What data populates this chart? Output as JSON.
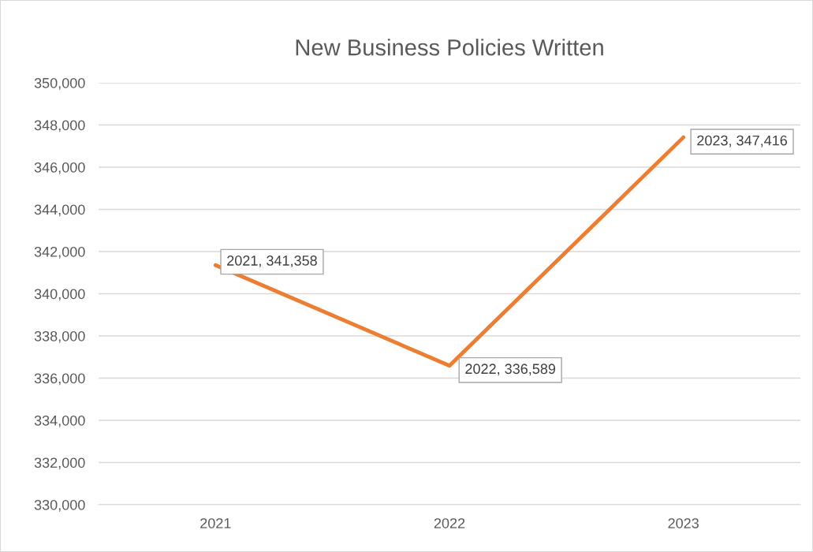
{
  "chart_data": {
    "type": "line",
    "title": "New Business Policies Written",
    "categories": [
      "2021",
      "2022",
      "2023"
    ],
    "series": [
      {
        "color": "#ed7d31",
        "values": [
          341358,
          336589,
          347416
        ],
        "value_labels": [
          "2021, 341,358",
          "2022, 336,589",
          "2023, 347,416"
        ]
      }
    ],
    "ylim": [
      330000,
      350000
    ],
    "yticks": [
      {
        "value": 330000,
        "label": "330,000"
      },
      {
        "value": 332000,
        "label": "332,000"
      },
      {
        "value": 334000,
        "label": "334,000"
      },
      {
        "value": 336000,
        "label": "336,000"
      },
      {
        "value": 338000,
        "label": "338,000"
      },
      {
        "value": 340000,
        "label": "340,000"
      },
      {
        "value": 342000,
        "label": "342,000"
      },
      {
        "value": 344000,
        "label": "344,000"
      },
      {
        "value": 346000,
        "label": "346,000"
      },
      {
        "value": 348000,
        "label": "348,000"
      },
      {
        "value": 350000,
        "label": "350,000"
      }
    ],
    "grid": "y",
    "marker": "none",
    "line_style": "solid"
  }
}
